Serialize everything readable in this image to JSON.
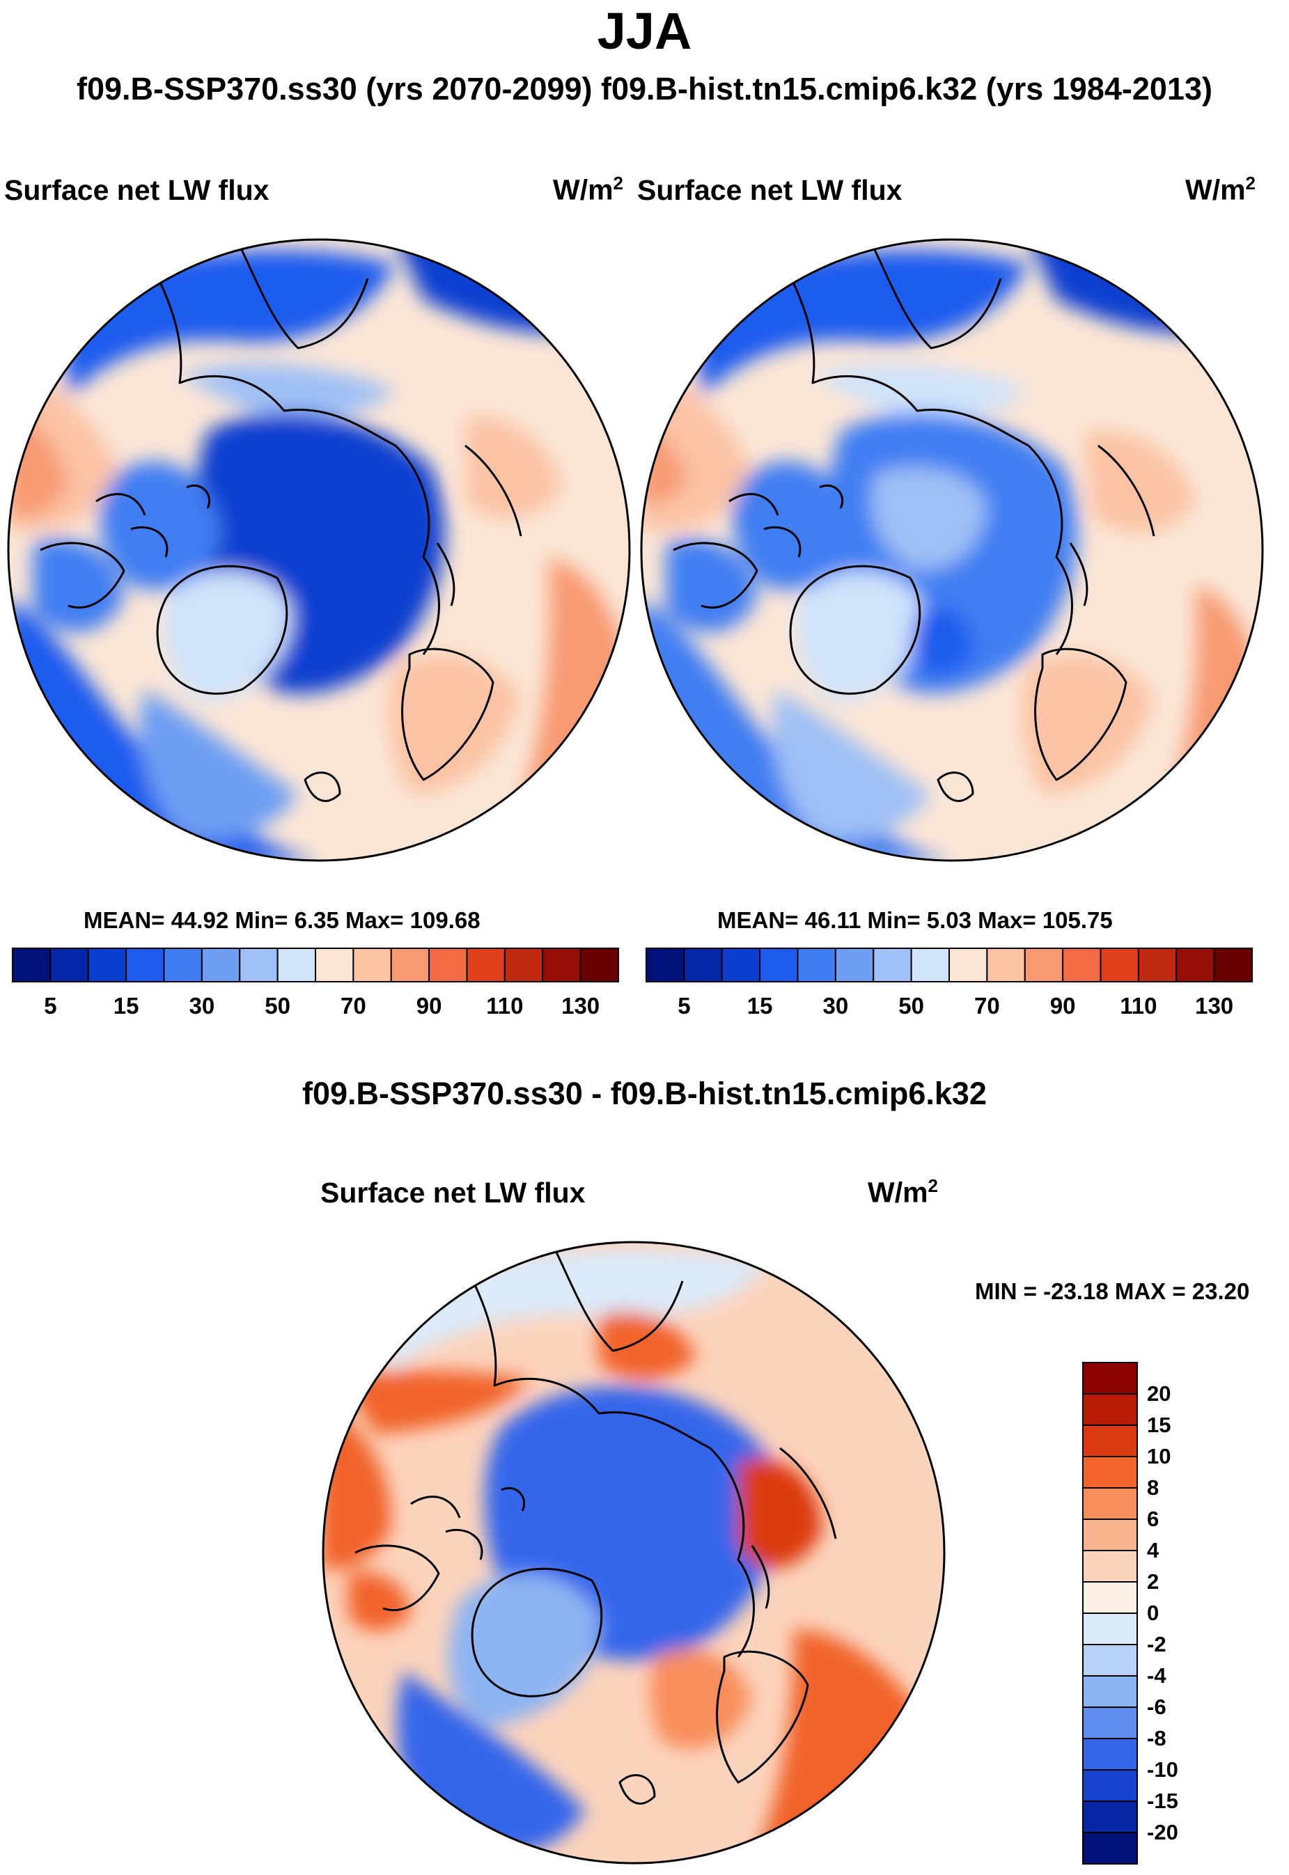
{
  "title": "JJA",
  "subtitle": "f09.B-SSP370.ss30 (yrs 2070-2099)  f09.B-hist.tn15.cmip6.k32 (yrs 1984-2013)",
  "chart_data": [
    {
      "type": "heatmap",
      "projection": "north polar stereographic",
      "title": "Surface net LW flux",
      "units": "W/m",
      "units_superscript": "2",
      "case": "f09.B-SSP370.ss30 (yrs 2070-2099)",
      "stats": {
        "mean": 44.92,
        "min": 6.35,
        "max": 109.68
      },
      "stats_text": "MEAN=  44.92  Min=   6.35  Max= 109.68",
      "colorbar": {
        "tick_labels": [
          "5",
          "15",
          "30",
          "50",
          "70",
          "90",
          "110",
          "130"
        ],
        "colors": [
          "#00127a",
          "#0228a8",
          "#0b3fd0",
          "#1e5bee",
          "#3f7ef2",
          "#6d9ef2",
          "#9fc0f5",
          "#cfe3fa",
          "#fbe6d6",
          "#fbc3a4",
          "#f79a72",
          "#f26b42",
          "#e2401a",
          "#c02a10",
          "#960f06",
          "#6a0000"
        ]
      }
    },
    {
      "type": "heatmap",
      "projection": "north polar stereographic",
      "title": "Surface net LW flux",
      "units": "W/m",
      "units_superscript": "2",
      "case": "f09.B-hist.tn15.cmip6.k32 (yrs 1984-2013)",
      "stats": {
        "mean": 46.11,
        "min": 5.03,
        "max": 105.75
      },
      "stats_text": "MEAN=  46.11  Min=   5.03  Max= 105.75",
      "colorbar": {
        "tick_labels": [
          "5",
          "15",
          "30",
          "50",
          "70",
          "90",
          "110",
          "130"
        ],
        "colors": [
          "#00127a",
          "#0228a8",
          "#0b3fd0",
          "#1e5bee",
          "#3f7ef2",
          "#6d9ef2",
          "#9fc0f5",
          "#cfe3fa",
          "#fbe6d6",
          "#fbc3a4",
          "#f79a72",
          "#f26b42",
          "#e2401a",
          "#c02a10",
          "#960f06",
          "#6a0000"
        ]
      }
    },
    {
      "type": "heatmap",
      "projection": "north polar stereographic",
      "figure_title": "f09.B-SSP370.ss30 - f09.B-hist.tn15.cmip6.k32",
      "title": "Surface net LW flux",
      "units": "W/m",
      "units_superscript": "2",
      "stats": {
        "min": -23.18,
        "max": 23.2
      },
      "stats_text": "MIN = -23.18 MAX =  23.20",
      "colorbar": {
        "tick_labels": [
          "20",
          "15",
          "10",
          "8",
          "6",
          "4",
          "2",
          "0",
          "-2",
          "-4",
          "-6",
          "-8",
          "-10",
          "-15",
          "-20"
        ],
        "colors": [
          "#8b0000",
          "#b81c07",
          "#dc3a10",
          "#f1642c",
          "#f88e5c",
          "#fbb28e",
          "#fcd3bc",
          "#fdf0e4",
          "#dbeaf9",
          "#b7d2f6",
          "#8db4f2",
          "#5f8df0",
          "#3466ea",
          "#1542cf",
          "#0626a5",
          "#00127a"
        ]
      }
    }
  ]
}
